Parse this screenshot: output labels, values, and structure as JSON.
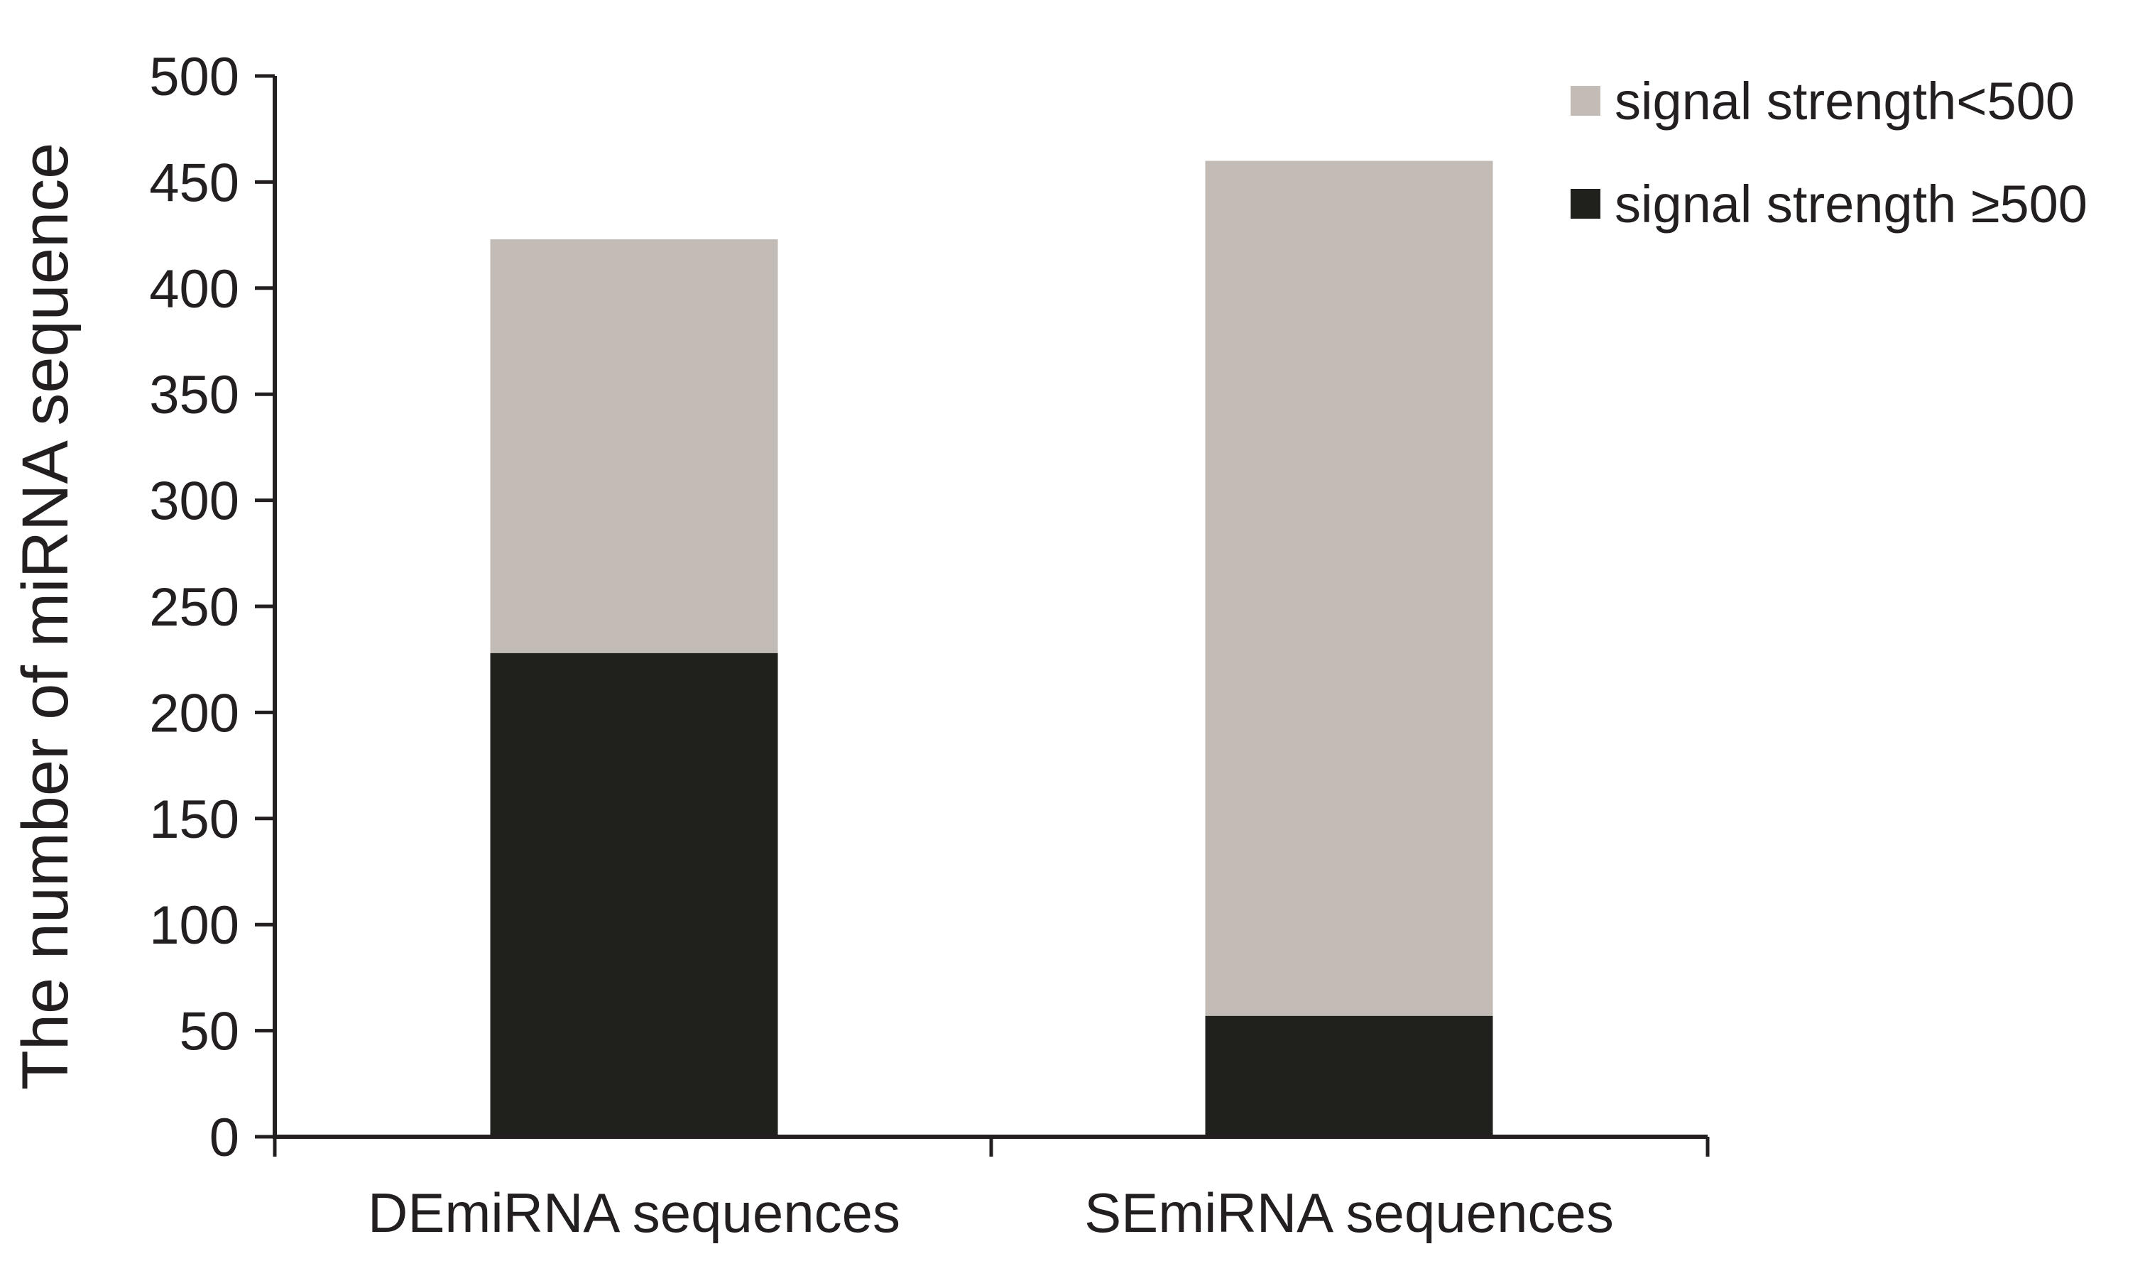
{
  "chart_data": {
    "type": "bar",
    "stacked": true,
    "categories": [
      "DEmiRNA sequences",
      "SEmiRNA sequences"
    ],
    "series": [
      {
        "name": "signal strength ≥500",
        "values": [
          228,
          57
        ],
        "color": "#20201c"
      },
      {
        "name": "signal strength<500",
        "values": [
          195,
          403
        ],
        "color": "#c3bbb6"
      }
    ],
    "title": "",
    "xlabel": "",
    "ylabel": "The number of miRNA sequence",
    "ylim": [
      0,
      500
    ],
    "yticks": [
      0,
      50,
      100,
      150,
      200,
      250,
      300,
      350,
      400,
      450,
      500
    ],
    "grid": false,
    "legend_position": "top-right",
    "legend_order": [
      "signal strength<500",
      "signal strength ≥500"
    ]
  }
}
